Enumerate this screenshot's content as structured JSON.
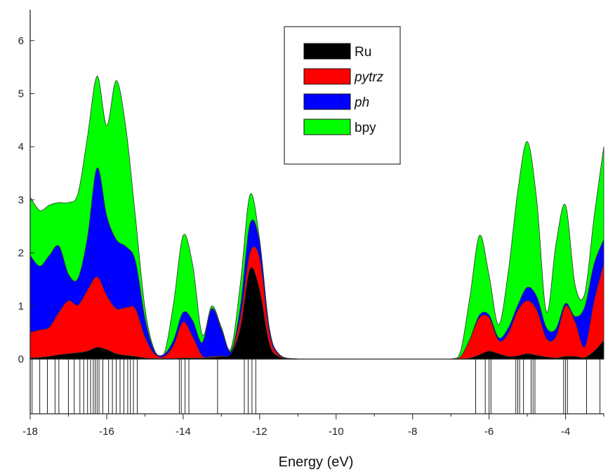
{
  "chart_data": {
    "type": "area",
    "stacked": true,
    "title": "",
    "xlabel": "Energy (eV)",
    "ylabel": "",
    "xlim": [
      -18,
      -3
    ],
    "ylim": [
      0,
      6.5
    ],
    "grid": false,
    "legend_position": "top-center",
    "x_ticks": [
      -18,
      -16,
      -14,
      -12,
      -10,
      -8,
      -6,
      -4
    ],
    "x_tick_labels": [
      "-18",
      "-16",
      "-14",
      "-12",
      "-10",
      "-8",
      "-6",
      "-4"
    ],
    "y_ticks": [
      0,
      1,
      2,
      3,
      4,
      5,
      6
    ],
    "y_tick_labels": [
      "0",
      "1",
      "2",
      "3",
      "4",
      "5",
      "6"
    ],
    "x": [
      -18,
      -17.75,
      -17.5,
      -17.25,
      -17,
      -16.75,
      -16.5,
      -16.25,
      -16,
      -15.75,
      -15.5,
      -15.25,
      -15,
      -14.75,
      -14.5,
      -14.25,
      -14,
      -13.75,
      -13.5,
      -13.25,
      -13,
      -12.75,
      -12.5,
      -12.25,
      -12,
      -11.75,
      -11.5,
      -11,
      -10,
      -9,
      -8,
      -7,
      -6.75,
      -6.5,
      -6.25,
      -6,
      -5.75,
      -5.5,
      -5.25,
      -5,
      -4.75,
      -4.5,
      -4.25,
      -4,
      -3.75,
      -3.5,
      -3.25,
      -3
    ],
    "series": [
      {
        "name": "Ru",
        "color": "#000000",
        "values": [
          0.02,
          0.03,
          0.05,
          0.08,
          0.1,
          0.12,
          0.15,
          0.22,
          0.18,
          0.1,
          0.07,
          0.05,
          0.02,
          0.01,
          0.01,
          0.01,
          0.02,
          0.02,
          0.02,
          0.03,
          0.05,
          0.1,
          0.6,
          1.7,
          1.3,
          0.3,
          0.05,
          0.0,
          0.0,
          0.0,
          0.0,
          0.0,
          0.0,
          0.02,
          0.08,
          0.15,
          0.1,
          0.05,
          0.06,
          0.1,
          0.07,
          0.04,
          0.02,
          0.05,
          0.05,
          0.03,
          0.15,
          0.35
        ]
      },
      {
        "name": "pytrz",
        "color": "#ff0000",
        "values": [
          0.48,
          0.52,
          0.55,
          0.8,
          1.0,
          0.9,
          1.15,
          1.33,
          1.02,
          0.85,
          0.9,
          0.9,
          0.4,
          0.09,
          0.04,
          0.25,
          0.68,
          0.4,
          0.04,
          0.02,
          0.01,
          0.0,
          0.2,
          0.3,
          0.6,
          0.2,
          0.03,
          0.0,
          0.0,
          0.0,
          0.0,
          0.0,
          0.04,
          0.35,
          0.7,
          0.63,
          0.25,
          0.43,
          0.85,
          1.0,
          0.85,
          0.35,
          0.4,
          0.95,
          0.65,
          0.2,
          0.95,
          1.45
        ]
      },
      {
        "name": "ph",
        "color": "#0000ff",
        "values": [
          1.45,
          1.2,
          1.35,
          1.25,
          0.5,
          0.5,
          1.0,
          2.05,
          1.5,
          1.3,
          1.15,
          0.9,
          0.35,
          0.05,
          0.04,
          0.1,
          0.18,
          0.3,
          0.25,
          0.9,
          0.5,
          0.05,
          0.2,
          0.55,
          0.3,
          0.1,
          0.02,
          0.0,
          0.0,
          0.0,
          0.0,
          0.0,
          0.0,
          0.01,
          0.05,
          0.05,
          0.05,
          0.1,
          0.1,
          0.25,
          0.25,
          0.2,
          0.15,
          0.05,
          0.1,
          0.75,
          0.7,
          0.45
        ]
      },
      {
        "name": "bpy",
        "color": "#00ff00",
        "values": [
          1.1,
          1.05,
          0.95,
          0.82,
          1.35,
          1.6,
          1.9,
          1.73,
          1.7,
          3.0,
          2.25,
          0.85,
          0.2,
          0.02,
          0.01,
          0.7,
          1.45,
          1.05,
          0.15,
          0.05,
          0.04,
          0.05,
          0.45,
          0.55,
          0.05,
          0.0,
          0.0,
          0.0,
          0.0,
          0.0,
          0.0,
          0.0,
          0.1,
          0.8,
          1.5,
          0.75,
          0.25,
          1.05,
          2.15,
          2.75,
          1.8,
          0.3,
          1.6,
          1.85,
          0.6,
          0.25,
          0.9,
          1.75
        ]
      }
    ],
    "line_markers": [
      -17.95,
      -17.75,
      -17.55,
      -17.35,
      -17.25,
      -17.0,
      -16.85,
      -16.7,
      -16.6,
      -16.5,
      -16.42,
      -16.35,
      -16.3,
      -16.25,
      -16.2,
      -16.1,
      -15.95,
      -15.85,
      -15.75,
      -15.65,
      -15.55,
      -15.45,
      -15.38,
      -15.3,
      -15.2,
      -14.1,
      -14.05,
      -13.95,
      -13.85,
      -13.1,
      -12.4,
      -12.3,
      -12.2,
      -12.1,
      -6.35,
      -6.1,
      -6.0,
      -5.95,
      -5.3,
      -5.25,
      -5.2,
      -5.1,
      -4.9,
      -4.85,
      -4.8,
      -4.05,
      -4.0,
      -3.95,
      -3.45,
      -3.1
    ]
  }
}
